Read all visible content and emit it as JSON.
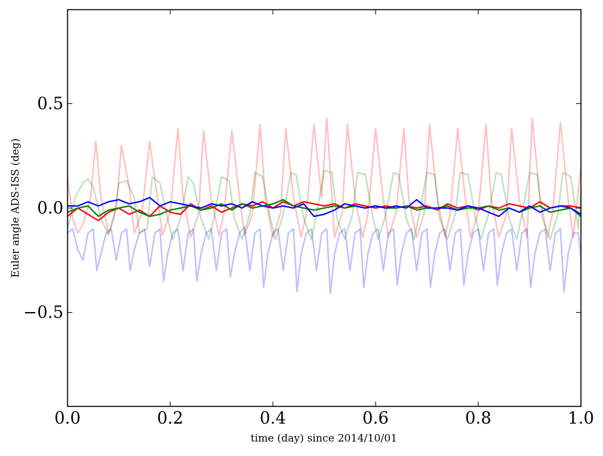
{
  "chart_data": {
    "type": "line",
    "title": "",
    "xlabel": "time (day) since 2014/10/01",
    "ylabel": "Euler angle ADS-ISS (deg)",
    "xlim": [
      0.0,
      1.0
    ],
    "ylim": [
      -0.95,
      0.95
    ],
    "xticks": [
      "0.0",
      "0.2",
      "0.4",
      "0.6",
      "0.8",
      "1.0"
    ],
    "xtick_values": [
      0.0,
      0.2,
      0.4,
      0.6,
      0.8,
      1.0
    ],
    "yticks": [
      "0.5",
      "0.0",
      "−0.5"
    ],
    "ytick_values": [
      0.5,
      0.0,
      -0.5
    ],
    "grid": false,
    "legend": "none",
    "series": [
      {
        "color": "#ff0000",
        "opacity": 0.25,
        "x": [
          0.0,
          0.01,
          0.02,
          0.03,
          0.045,
          0.055,
          0.065,
          0.08,
          0.095,
          0.105,
          0.12,
          0.13,
          0.145,
          0.16,
          0.175,
          0.185,
          0.2,
          0.215,
          0.225,
          0.24,
          0.255,
          0.265,
          0.28,
          0.295,
          0.305,
          0.32,
          0.335,
          0.345,
          0.36,
          0.375,
          0.385,
          0.4,
          0.415,
          0.425,
          0.44,
          0.455,
          0.465,
          0.48,
          0.495,
          0.505,
          0.52,
          0.535,
          0.545,
          0.56,
          0.575,
          0.585,
          0.6,
          0.615,
          0.625,
          0.64,
          0.655,
          0.665,
          0.68,
          0.695,
          0.705,
          0.72,
          0.735,
          0.745,
          0.76,
          0.775,
          0.785,
          0.8,
          0.815,
          0.825,
          0.84,
          0.855,
          0.865,
          0.88,
          0.895,
          0.905,
          0.92,
          0.935,
          0.945,
          0.96,
          0.975,
          0.985,
          1.0
        ],
        "y": [
          0.15,
          -0.05,
          -0.12,
          -0.08,
          0.05,
          0.32,
          0.05,
          -0.12,
          0.0,
          0.3,
          0.1,
          -0.12,
          -0.02,
          0.32,
          0.05,
          -0.13,
          -0.02,
          0.38,
          0.05,
          -0.14,
          -0.03,
          0.37,
          0.04,
          -0.13,
          -0.02,
          0.37,
          0.05,
          -0.13,
          -0.03,
          0.4,
          0.05,
          -0.14,
          -0.02,
          0.38,
          0.05,
          -0.14,
          -0.03,
          0.4,
          0.05,
          0.43,
          -0.14,
          -0.02,
          0.4,
          0.05,
          -0.14,
          -0.03,
          0.38,
          0.04,
          -0.14,
          -0.02,
          0.38,
          0.04,
          -0.14,
          -0.02,
          0.4,
          0.05,
          -0.14,
          -0.03,
          0.38,
          0.04,
          -0.14,
          -0.02,
          0.4,
          0.05,
          -0.14,
          -0.03,
          0.38,
          0.04,
          -0.14,
          0.43,
          0.05,
          -0.14,
          -0.02,
          0.41,
          0.04,
          -0.14,
          0.2
        ]
      },
      {
        "color": "#008000",
        "opacity": 0.25,
        "x": [
          0.0,
          0.015,
          0.03,
          0.04,
          0.05,
          0.065,
          0.08,
          0.09,
          0.1,
          0.115,
          0.13,
          0.14,
          0.155,
          0.165,
          0.18,
          0.195,
          0.205,
          0.22,
          0.235,
          0.245,
          0.26,
          0.275,
          0.285,
          0.3,
          0.315,
          0.325,
          0.34,
          0.355,
          0.365,
          0.38,
          0.395,
          0.405,
          0.42,
          0.435,
          0.445,
          0.46,
          0.475,
          0.485,
          0.5,
          0.515,
          0.525,
          0.54,
          0.555,
          0.565,
          0.58,
          0.595,
          0.605,
          0.62,
          0.635,
          0.645,
          0.66,
          0.675,
          0.685,
          0.7,
          0.715,
          0.725,
          0.74,
          0.755,
          0.765,
          0.78,
          0.795,
          0.805,
          0.82,
          0.835,
          0.845,
          0.86,
          0.875,
          0.885,
          0.9,
          0.915,
          0.925,
          0.94,
          0.955,
          0.965,
          0.98,
          0.995,
          1.0
        ],
        "y": [
          -0.1,
          0.05,
          0.12,
          0.14,
          0.1,
          -0.05,
          -0.13,
          -0.05,
          0.12,
          0.13,
          0.05,
          -0.12,
          -0.1,
          0.15,
          0.12,
          -0.05,
          -0.15,
          -0.05,
          0.15,
          0.12,
          -0.05,
          -0.15,
          -0.05,
          0.15,
          0.13,
          -0.05,
          -0.15,
          -0.03,
          0.17,
          0.15,
          -0.05,
          -0.15,
          -0.03,
          0.17,
          0.16,
          -0.05,
          -0.15,
          -0.03,
          0.18,
          0.17,
          -0.05,
          -0.15,
          -0.03,
          0.17,
          0.16,
          -0.05,
          -0.15,
          -0.03,
          0.17,
          0.16,
          -0.05,
          -0.15,
          -0.03,
          0.17,
          0.16,
          -0.05,
          -0.15,
          -0.03,
          0.17,
          0.16,
          -0.05,
          -0.15,
          -0.03,
          0.17,
          0.16,
          -0.05,
          -0.15,
          -0.03,
          0.17,
          0.16,
          -0.05,
          -0.15,
          -0.03,
          0.17,
          0.15,
          -0.1,
          0.1
        ]
      },
      {
        "color": "#0000ff",
        "opacity": 0.25,
        "x": [
          0.0,
          0.01,
          0.02,
          0.03,
          0.04,
          0.05,
          0.057,
          0.065,
          0.075,
          0.085,
          0.095,
          0.105,
          0.115,
          0.122,
          0.13,
          0.14,
          0.15,
          0.16,
          0.17,
          0.18,
          0.187,
          0.195,
          0.205,
          0.215,
          0.225,
          0.235,
          0.245,
          0.252,
          0.26,
          0.27,
          0.28,
          0.29,
          0.3,
          0.31,
          0.317,
          0.325,
          0.335,
          0.345,
          0.355,
          0.365,
          0.375,
          0.382,
          0.39,
          0.4,
          0.41,
          0.42,
          0.43,
          0.44,
          0.447,
          0.455,
          0.465,
          0.475,
          0.485,
          0.495,
          0.505,
          0.512,
          0.52,
          0.53,
          0.54,
          0.55,
          0.56,
          0.57,
          0.577,
          0.585,
          0.595,
          0.605,
          0.615,
          0.625,
          0.635,
          0.642,
          0.65,
          0.66,
          0.67,
          0.68,
          0.69,
          0.7,
          0.707,
          0.715,
          0.725,
          0.735,
          0.745,
          0.755,
          0.765,
          0.772,
          0.78,
          0.79,
          0.8,
          0.81,
          0.82,
          0.83,
          0.837,
          0.845,
          0.855,
          0.865,
          0.875,
          0.885,
          0.895,
          0.902,
          0.91,
          0.92,
          0.93,
          0.94,
          0.95,
          0.96,
          0.967,
          0.975,
          0.985,
          0.995,
          1.0
        ],
        "y": [
          -0.12,
          -0.1,
          -0.2,
          -0.25,
          -0.12,
          -0.1,
          -0.3,
          -0.22,
          -0.12,
          -0.1,
          -0.25,
          -0.12,
          -0.1,
          -0.3,
          -0.2,
          -0.12,
          -0.1,
          -0.28,
          -0.12,
          -0.1,
          -0.35,
          -0.22,
          -0.12,
          -0.1,
          -0.3,
          -0.12,
          -0.1,
          -0.35,
          -0.22,
          -0.12,
          -0.1,
          -0.3,
          -0.12,
          -0.1,
          -0.33,
          -0.22,
          -0.12,
          -0.09,
          -0.3,
          -0.12,
          -0.1,
          -0.38,
          -0.22,
          -0.12,
          -0.1,
          -0.3,
          -0.12,
          -0.1,
          -0.4,
          -0.22,
          -0.12,
          -0.1,
          -0.3,
          -0.12,
          -0.1,
          -0.41,
          -0.22,
          -0.12,
          -0.1,
          -0.3,
          -0.12,
          -0.1,
          -0.38,
          -0.22,
          -0.12,
          -0.1,
          -0.3,
          -0.12,
          -0.1,
          -0.37,
          -0.22,
          -0.12,
          -0.1,
          -0.3,
          -0.12,
          -0.1,
          -0.38,
          -0.22,
          -0.12,
          -0.1,
          -0.3,
          -0.12,
          -0.1,
          -0.37,
          -0.22,
          -0.12,
          -0.1,
          -0.3,
          -0.12,
          -0.1,
          -0.37,
          -0.22,
          -0.12,
          -0.1,
          -0.3,
          -0.12,
          -0.1,
          -0.38,
          -0.22,
          -0.12,
          -0.1,
          -0.3,
          -0.12,
          -0.1,
          -0.4,
          -0.22,
          -0.12,
          -0.12,
          -0.25
        ]
      },
      {
        "color": "#ff0000",
        "opacity": 1.0,
        "x": [
          0.0,
          0.02,
          0.04,
          0.06,
          0.08,
          0.1,
          0.12,
          0.14,
          0.16,
          0.18,
          0.2,
          0.22,
          0.24,
          0.26,
          0.28,
          0.3,
          0.32,
          0.34,
          0.36,
          0.38,
          0.4,
          0.42,
          0.44,
          0.46,
          0.48,
          0.5,
          0.52,
          0.54,
          0.56,
          0.58,
          0.6,
          0.62,
          0.64,
          0.66,
          0.68,
          0.7,
          0.72,
          0.74,
          0.76,
          0.78,
          0.8,
          0.82,
          0.84,
          0.86,
          0.88,
          0.9,
          0.92,
          0.94,
          0.96,
          0.98,
          1.0
        ],
        "y": [
          -0.04,
          0.0,
          -0.03,
          -0.06,
          -0.02,
          0.0,
          -0.03,
          -0.01,
          -0.04,
          0.01,
          -0.02,
          -0.03,
          0.02,
          -0.01,
          0.01,
          -0.02,
          0.0,
          0.02,
          0.01,
          0.03,
          0.0,
          0.03,
          0.01,
          0.03,
          0.02,
          0.01,
          0.02,
          0.0,
          0.02,
          0.01,
          0.0,
          0.01,
          0.0,
          0.01,
          0.0,
          0.01,
          -0.01,
          0.02,
          0.0,
          0.01,
          -0.01,
          0.01,
          0.0,
          0.02,
          0.01,
          0.0,
          0.03,
          0.0,
          0.01,
          0.01,
          0.0
        ]
      },
      {
        "color": "#008000",
        "opacity": 1.0,
        "x": [
          0.0,
          0.02,
          0.04,
          0.06,
          0.08,
          0.1,
          0.12,
          0.14,
          0.16,
          0.18,
          0.2,
          0.22,
          0.24,
          0.26,
          0.28,
          0.3,
          0.32,
          0.34,
          0.36,
          0.38,
          0.4,
          0.42,
          0.44,
          0.46,
          0.48,
          0.5,
          0.52,
          0.54,
          0.56,
          0.58,
          0.6,
          0.62,
          0.64,
          0.66,
          0.68,
          0.7,
          0.72,
          0.74,
          0.76,
          0.78,
          0.8,
          0.82,
          0.84,
          0.86,
          0.88,
          0.9,
          0.92,
          0.94,
          0.96,
          0.98,
          1.0
        ],
        "y": [
          -0.02,
          0.0,
          0.01,
          -0.04,
          -0.01,
          0.0,
          0.01,
          -0.02,
          -0.04,
          -0.03,
          -0.01,
          0.0,
          0.01,
          -0.01,
          0.0,
          0.02,
          -0.01,
          0.02,
          0.0,
          0.01,
          0.02,
          0.04,
          0.01,
          0.0,
          -0.01,
          0.0,
          0.01,
          0.0,
          0.01,
          0.0,
          0.01,
          0.0,
          0.0,
          0.01,
          -0.01,
          0.0,
          0.0,
          0.01,
          -0.01,
          0.0,
          0.0,
          0.01,
          -0.01,
          0.0,
          -0.02,
          0.0,
          0.01,
          -0.02,
          -0.01,
          0.0,
          -0.04
        ]
      },
      {
        "color": "#0000ff",
        "opacity": 1.0,
        "x": [
          0.0,
          0.02,
          0.04,
          0.06,
          0.08,
          0.1,
          0.12,
          0.14,
          0.16,
          0.18,
          0.2,
          0.22,
          0.24,
          0.26,
          0.28,
          0.3,
          0.32,
          0.34,
          0.36,
          0.38,
          0.4,
          0.42,
          0.44,
          0.46,
          0.48,
          0.5,
          0.52,
          0.54,
          0.56,
          0.58,
          0.6,
          0.62,
          0.64,
          0.66,
          0.68,
          0.7,
          0.72,
          0.74,
          0.76,
          0.78,
          0.8,
          0.82,
          0.84,
          0.86,
          0.88,
          0.9,
          0.92,
          0.94,
          0.96,
          0.98,
          1.0
        ],
        "y": [
          0.01,
          0.01,
          0.03,
          0.01,
          0.03,
          0.04,
          0.02,
          0.03,
          0.05,
          0.01,
          0.03,
          0.02,
          0.01,
          0.0,
          0.02,
          0.01,
          0.02,
          0.0,
          0.03,
          0.01,
          0.0,
          0.01,
          0.0,
          0.02,
          -0.04,
          -0.03,
          -0.01,
          0.02,
          0.01,
          0.0,
          0.01,
          0.0,
          0.01,
          0.0,
          0.04,
          0.0,
          0.0,
          0.0,
          -0.01,
          0.01,
          0.0,
          -0.02,
          -0.04,
          0.0,
          -0.02,
          0.01,
          -0.02,
          0.0,
          0.01,
          0.0,
          -0.03
        ]
      }
    ]
  }
}
